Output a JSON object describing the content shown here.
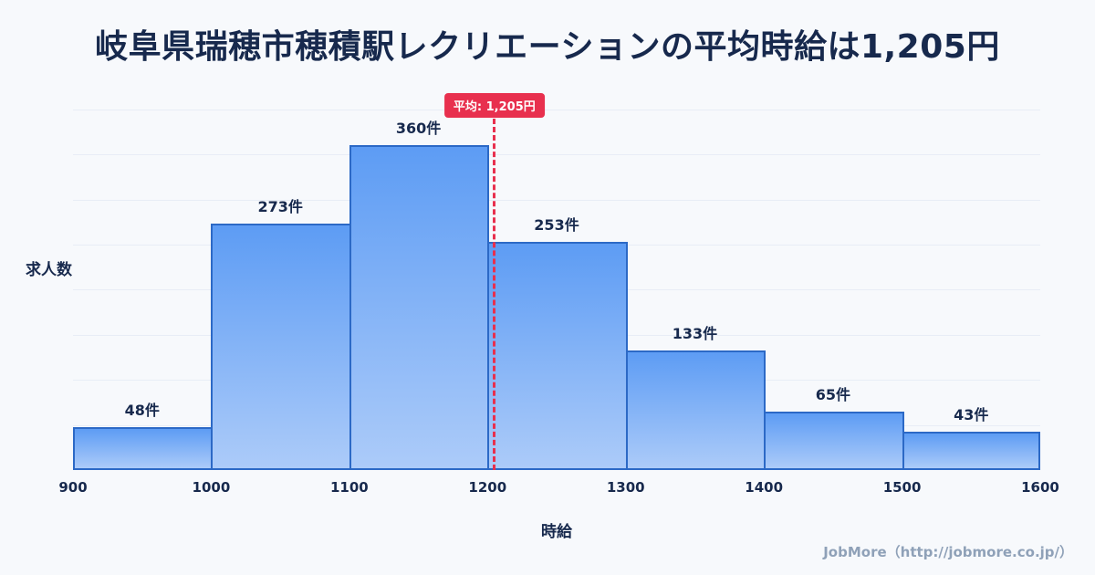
{
  "title": "岐阜県瑞穂市穂積駅レクリエーションの平均時給は1,205円",
  "footer": {
    "credit": "JobMore（http://jobmore.co.jp/）"
  },
  "chart_data": {
    "type": "bar",
    "title": "岐阜県瑞穂市穂積駅レクリエーションの平均時給は1,205円",
    "xlabel": "時給",
    "ylabel": "求人数",
    "bin_edges": [
      900,
      1000,
      1100,
      1200,
      1300,
      1400,
      1500,
      1600
    ],
    "x_tick_labels": [
      "900",
      "1000",
      "1100",
      "1200",
      "1300",
      "1400",
      "1500",
      "1600"
    ],
    "values": [
      48,
      273,
      360,
      253,
      133,
      65,
      43
    ],
    "value_labels": [
      "48件",
      "273件",
      "360件",
      "253件",
      "133件",
      "65件",
      "43件"
    ],
    "average": 1205,
    "average_label": "平均: 1,205円",
    "x_range": [
      900,
      1600
    ],
    "ylim": [
      0,
      420
    ],
    "grid": true,
    "grid_step": 50,
    "legend": "none",
    "colors": {
      "bar_top": "#5d9cf4",
      "bar_bottom": "#accbf9",
      "bar_border": "#2c69c6",
      "average_line": "#e8304e",
      "badge_bg": "#e8304e",
      "badge_text": "#ffffff",
      "title_text": "#17294d",
      "label_text": "#17294d",
      "grid_line": "#e8edf6",
      "background": "#f7f9fc",
      "footer_text": "#8fa1b8"
    }
  }
}
